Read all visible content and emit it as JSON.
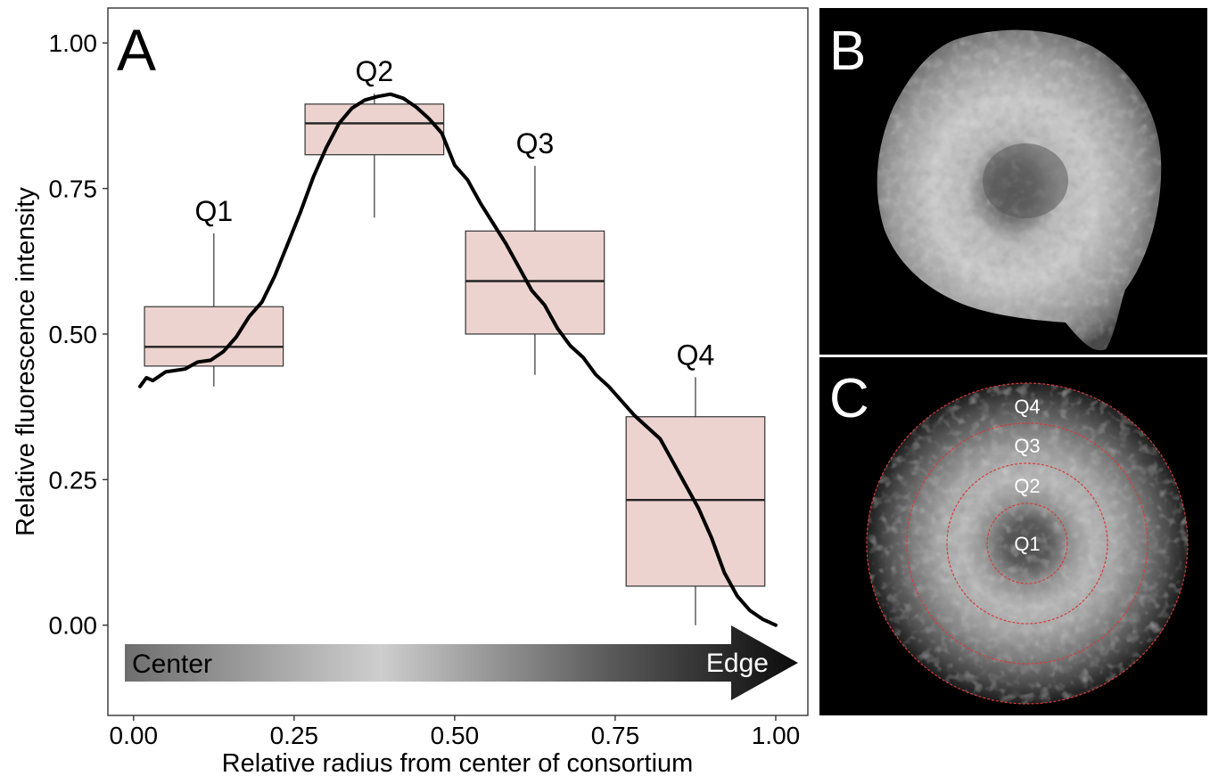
{
  "panels": {
    "a": {
      "label": "A"
    },
    "b": {
      "label": "B"
    },
    "c": {
      "label": "C"
    }
  },
  "chart_data": {
    "type": "box",
    "xlabel": "Relative radius from center of consortium",
    "ylabel": "Relative fluorescence intensity",
    "xlim": [
      -0.04,
      1.05
    ],
    "ylim": [
      -0.155,
      1.06
    ],
    "xticks": [
      "0.00",
      "0.25",
      "0.50",
      "0.75",
      "1.00"
    ],
    "yticks": [
      "0.00",
      "0.25",
      "0.50",
      "0.75",
      "1.00"
    ],
    "grid": false,
    "gradient_arrow": {
      "left_label": "Center",
      "right_label": "Edge"
    },
    "box_fill": "#ecd3cf",
    "boxes": [
      {
        "name": "Q1",
        "x": 0.125,
        "whisker_low": 0.41,
        "q1": 0.445,
        "median": 0.478,
        "q3": 0.547,
        "whisker_high": 0.673
      },
      {
        "name": "Q2",
        "x": 0.375,
        "whisker_low": 0.7,
        "q1": 0.808,
        "median": 0.862,
        "q3": 0.895,
        "whisker_high": 0.913
      },
      {
        "name": "Q3",
        "x": 0.625,
        "whisker_low": 0.43,
        "q1": 0.5,
        "median": 0.591,
        "q3": 0.677,
        "whisker_high": 0.789
      },
      {
        "name": "Q4",
        "x": 0.875,
        "whisker_low": 0.0,
        "q1": 0.067,
        "median": 0.215,
        "q3": 0.358,
        "whisker_high": 0.426
      }
    ],
    "profile_line": {
      "x": [
        0.01,
        0.02,
        0.03,
        0.05,
        0.08,
        0.1,
        0.12,
        0.14,
        0.16,
        0.18,
        0.2,
        0.22,
        0.24,
        0.26,
        0.28,
        0.3,
        0.32,
        0.34,
        0.36,
        0.38,
        0.4,
        0.42,
        0.44,
        0.46,
        0.48,
        0.5,
        0.52,
        0.54,
        0.56,
        0.58,
        0.6,
        0.62,
        0.64,
        0.66,
        0.68,
        0.7,
        0.72,
        0.74,
        0.76,
        0.78,
        0.8,
        0.82,
        0.84,
        0.86,
        0.88,
        0.9,
        0.92,
        0.94,
        0.96,
        0.98,
        1.0
      ],
      "y": [
        0.41,
        0.425,
        0.42,
        0.435,
        0.44,
        0.452,
        0.455,
        0.47,
        0.495,
        0.53,
        0.555,
        0.6,
        0.655,
        0.71,
        0.77,
        0.82,
        0.862,
        0.888,
        0.902,
        0.908,
        0.912,
        0.905,
        0.89,
        0.87,
        0.845,
        0.79,
        0.765,
        0.725,
        0.69,
        0.655,
        0.615,
        0.575,
        0.55,
        0.51,
        0.48,
        0.46,
        0.43,
        0.41,
        0.385,
        0.36,
        0.34,
        0.32,
        0.28,
        0.24,
        0.2,
        0.15,
        0.09,
        0.05,
        0.025,
        0.01,
        0.0
      ]
    }
  },
  "panel_c": {
    "rings": [
      {
        "label": "Q1"
      },
      {
        "label": "Q2"
      },
      {
        "label": "Q3"
      },
      {
        "label": "Q4"
      }
    ],
    "ring_color": "#d93a3a"
  }
}
